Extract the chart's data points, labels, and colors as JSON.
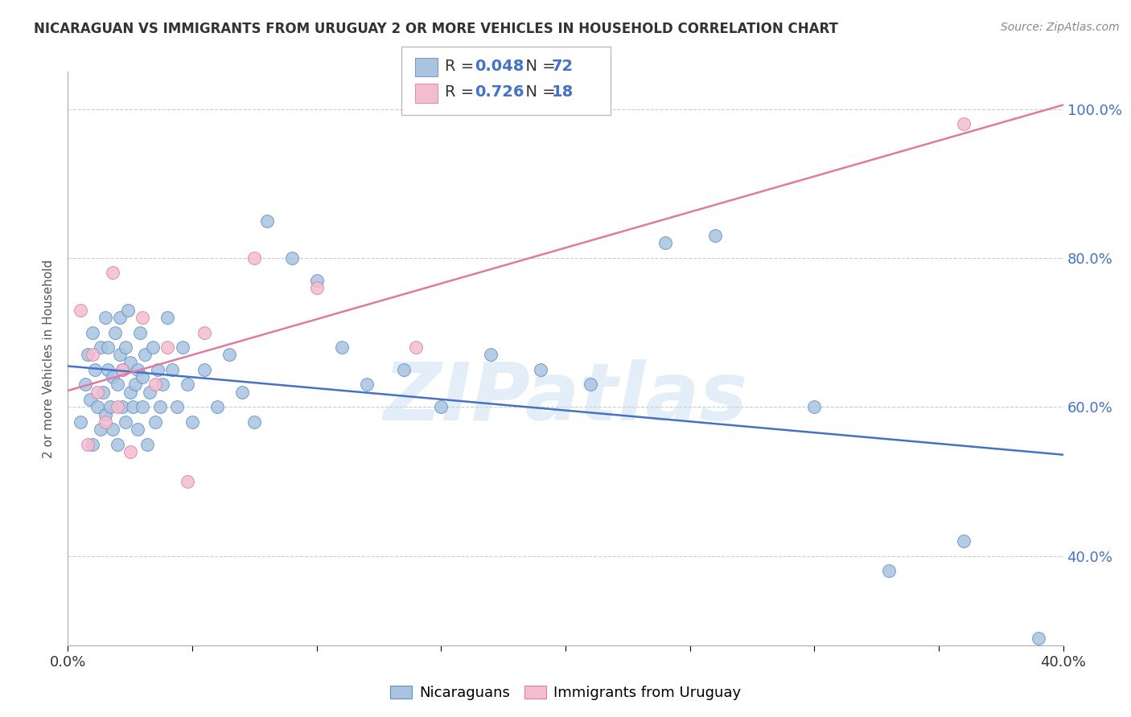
{
  "title": "NICARAGUAN VS IMMIGRANTS FROM URUGUAY 2 OR MORE VEHICLES IN HOUSEHOLD CORRELATION CHART",
  "source": "Source: ZipAtlas.com",
  "ylabel": "2 or more Vehicles in Household",
  "y_ticks": [
    0.4,
    0.6,
    0.8,
    1.0
  ],
  "y_tick_labels": [
    "40.0%",
    "60.0%",
    "80.0%",
    "100.0%"
  ],
  "x_min": 0.0,
  "x_max": 0.4,
  "y_min": 0.28,
  "y_max": 1.05,
  "blue_R": 0.048,
  "blue_N": 72,
  "pink_R": 0.726,
  "pink_N": 18,
  "blue_color": "#aac4e0",
  "blue_edge_color": "#5b8fc9",
  "blue_line_color": "#4472c4",
  "pink_color": "#f2bece",
  "pink_edge_color": "#e07aa0",
  "pink_line_color": "#e07aa0",
  "legend_label_blue": "Nicaraguans",
  "legend_label_pink": "Immigrants from Uruguay",
  "watermark": "ZIPatlas",
  "blue_x": [
    0.005,
    0.007,
    0.008,
    0.009,
    0.01,
    0.01,
    0.011,
    0.012,
    0.013,
    0.013,
    0.014,
    0.015,
    0.015,
    0.016,
    0.016,
    0.017,
    0.018,
    0.018,
    0.019,
    0.02,
    0.02,
    0.021,
    0.021,
    0.022,
    0.022,
    0.023,
    0.023,
    0.024,
    0.025,
    0.025,
    0.026,
    0.027,
    0.028,
    0.028,
    0.029,
    0.03,
    0.03,
    0.031,
    0.032,
    0.033,
    0.034,
    0.035,
    0.036,
    0.037,
    0.038,
    0.04,
    0.042,
    0.044,
    0.046,
    0.048,
    0.05,
    0.055,
    0.06,
    0.065,
    0.07,
    0.075,
    0.08,
    0.09,
    0.1,
    0.11,
    0.12,
    0.135,
    0.15,
    0.17,
    0.19,
    0.21,
    0.24,
    0.26,
    0.3,
    0.33,
    0.36,
    0.39
  ],
  "blue_y": [
    0.58,
    0.63,
    0.67,
    0.61,
    0.55,
    0.7,
    0.65,
    0.6,
    0.68,
    0.57,
    0.62,
    0.72,
    0.59,
    0.65,
    0.68,
    0.6,
    0.64,
    0.57,
    0.7,
    0.55,
    0.63,
    0.67,
    0.72,
    0.6,
    0.65,
    0.58,
    0.68,
    0.73,
    0.62,
    0.66,
    0.6,
    0.63,
    0.57,
    0.65,
    0.7,
    0.6,
    0.64,
    0.67,
    0.55,
    0.62,
    0.68,
    0.58,
    0.65,
    0.6,
    0.63,
    0.72,
    0.65,
    0.6,
    0.68,
    0.63,
    0.58,
    0.65,
    0.6,
    0.67,
    0.62,
    0.58,
    0.85,
    0.8,
    0.77,
    0.68,
    0.63,
    0.65,
    0.6,
    0.67,
    0.65,
    0.63,
    0.82,
    0.83,
    0.6,
    0.38,
    0.42,
    0.29
  ],
  "pink_x": [
    0.005,
    0.008,
    0.01,
    0.012,
    0.015,
    0.018,
    0.02,
    0.022,
    0.025,
    0.03,
    0.035,
    0.04,
    0.048,
    0.055,
    0.075,
    0.1,
    0.14,
    0.36
  ],
  "pink_y": [
    0.73,
    0.55,
    0.67,
    0.62,
    0.58,
    0.78,
    0.6,
    0.65,
    0.54,
    0.72,
    0.63,
    0.68,
    0.5,
    0.7,
    0.8,
    0.76,
    0.68,
    0.98
  ]
}
